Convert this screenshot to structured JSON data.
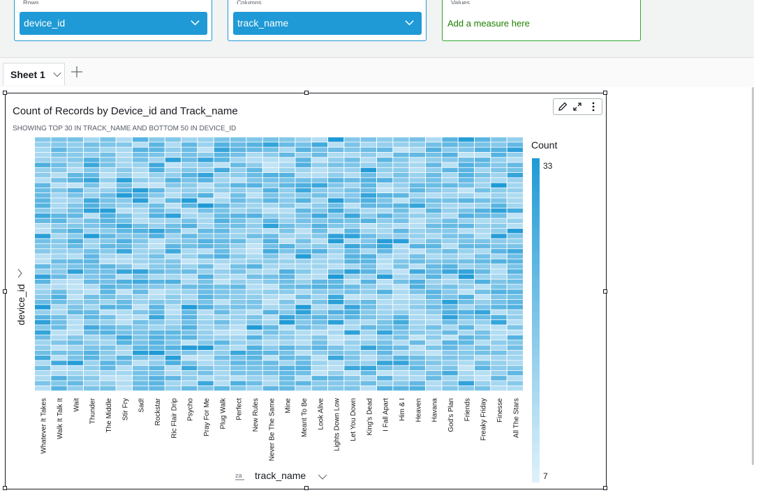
{
  "field_wells": {
    "rows": {
      "label": "Rows",
      "field": "device_id"
    },
    "columns": {
      "label": "Columns",
      "field": "track_name"
    },
    "values": {
      "label": "Values",
      "placeholder": "Add a measure here"
    }
  },
  "sheets": {
    "active_label": "Sheet 1"
  },
  "visual": {
    "title": "Count of Records by Device_id and Track_name",
    "subtitle": "SHOWING TOP 30 IN TRACK_NAME AND BOTTOM 50 IN DEVICE_ID"
  },
  "chart_data": {
    "type": "heatmap",
    "xlabel": "track_name",
    "ylabel": "device_id",
    "x_categories": [
      "Whatever It Takes",
      "Walk It Talk It",
      "Wait",
      "Thunder",
      "The Middle",
      "Stir Fry",
      "Sad!",
      "Rockstar",
      "Ric Flair Drip",
      "Psycho",
      "Pray For Me",
      "Plug Walk",
      "Perfect",
      "New Rules",
      "Never Be The Same",
      "Mine",
      "Meant To Be",
      "Look Alive",
      "Lights Down Low",
      "Let You Down",
      "King's Dead",
      "I Fall Apart",
      "Him & I",
      "Heaven",
      "Havana",
      "God's Plan",
      "Friends",
      "Freaky Friday",
      "Finesse",
      "All The Stars"
    ],
    "y_row_count": 50,
    "sort": "za",
    "legend": {
      "title": "Count",
      "max": 33,
      "min": 7,
      "placement": "right"
    },
    "colors": {
      "low": "#dff1fb",
      "high": "#1f9ad6"
    }
  }
}
